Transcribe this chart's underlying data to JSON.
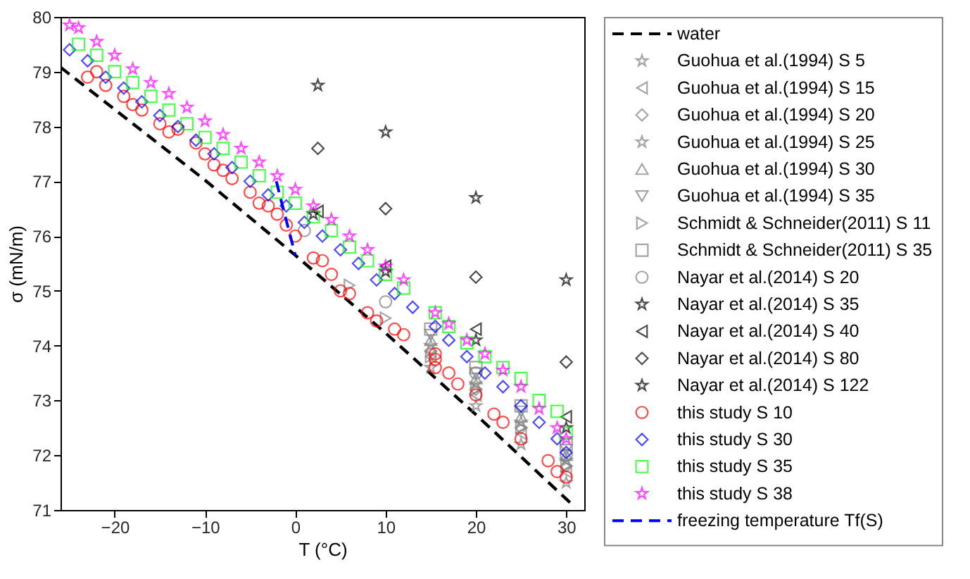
{
  "chart_data": {
    "type": "scatter",
    "xlabel": "T (°C)",
    "ylabel": "σ (mN/m)",
    "xlim": [
      -26,
      32
    ],
    "ylim": [
      71,
      80
    ],
    "xticks": [
      -20,
      -10,
      0,
      10,
      20,
      30
    ],
    "yticks": [
      71,
      72,
      73,
      74,
      75,
      76,
      77,
      78,
      79,
      80
    ],
    "grid": false,
    "legend": "right",
    "series": [
      {
        "name": "water",
        "type": "line",
        "line_style": "dashed",
        "marker": "none",
        "color": "#000000",
        "x": [
          -26,
          -20,
          -10,
          0,
          10,
          20,
          30,
          31
        ],
        "values": [
          79.08,
          78.31,
          77.02,
          75.65,
          74.23,
          72.74,
          71.2,
          71.05
        ]
      },
      {
        "name": "Guohua et al.(1994) S 5",
        "marker": "star",
        "color": "#808080",
        "x": [
          15,
          20,
          25,
          30
        ],
        "values": [
          73.6,
          72.9,
          72.2,
          71.5
        ]
      },
      {
        "name": "Guohua et al.(1994) S 15",
        "marker": "triangle-left",
        "color": "#808080",
        "x": [
          15,
          20,
          25,
          30
        ],
        "values": [
          73.8,
          73.1,
          72.4,
          71.7
        ]
      },
      {
        "name": "Guohua et al.(1994) S 20",
        "marker": "diamond",
        "color": "#808080",
        "x": [
          15,
          20,
          25,
          30
        ],
        "values": [
          73.9,
          73.2,
          72.5,
          71.8
        ]
      },
      {
        "name": "Guohua et al.(1994) S 25",
        "marker": "star",
        "color": "#808080",
        "x": [
          15,
          20,
          25,
          30
        ],
        "values": [
          74.0,
          73.3,
          72.6,
          71.9
        ]
      },
      {
        "name": "Guohua et al.(1994) S 30",
        "marker": "triangle",
        "color": "#808080",
        "x": [
          15,
          20,
          25,
          30
        ],
        "values": [
          74.1,
          73.4,
          72.7,
          72.0
        ]
      },
      {
        "name": "Guohua et al.(1994) S 35",
        "marker": "triangle-down",
        "color": "#808080",
        "x": [
          15,
          20,
          25,
          30
        ],
        "values": [
          74.2,
          73.5,
          72.8,
          72.1
        ]
      },
      {
        "name": "Schmidt & Schneider(2011) S 11",
        "marker": "triangle-right",
        "color": "#808080",
        "x": [
          6,
          10,
          15,
          20,
          25,
          30
        ],
        "values": [
          75.1,
          74.5,
          73.8,
          73.2,
          72.5,
          71.8
        ]
      },
      {
        "name": "Schmidt & Schneider(2011) S 35",
        "marker": "square",
        "color": "#808080",
        "x": [
          15,
          20,
          25,
          30
        ],
        "values": [
          74.3,
          73.6,
          72.9,
          72.2
        ]
      },
      {
        "name": "Nayar et al.(2014) S 20",
        "marker": "circle",
        "color": "#808080",
        "x": [
          1,
          10,
          20,
          30
        ],
        "values": [
          76.1,
          74.8,
          73.5,
          72.0
        ]
      },
      {
        "name": "Nayar et al.(2014) S 35",
        "marker": "star",
        "color": "#000000",
        "x": [
          2,
          10,
          20,
          30
        ],
        "values": [
          76.4,
          75.35,
          74.1,
          72.5
        ]
      },
      {
        "name": "Nayar et al.(2014) S 40",
        "marker": "triangle-left",
        "color": "#000000",
        "x": [
          2.5,
          10,
          20,
          30
        ],
        "values": [
          76.45,
          75.45,
          74.3,
          72.7
        ]
      },
      {
        "name": "Nayar et al.(2014) S 80",
        "marker": "diamond",
        "color": "#000000",
        "x": [
          2.5,
          10,
          20,
          30
        ],
        "values": [
          77.6,
          76.5,
          75.25,
          73.7
        ]
      },
      {
        "name": "Nayar et al.(2014) S 122",
        "marker": "star",
        "color": "#000000",
        "x": [
          2.5,
          10,
          20,
          30
        ],
        "values": [
          78.75,
          77.9,
          76.7,
          75.2
        ]
      },
      {
        "name": "this study S 10",
        "marker": "circle",
        "color": "#ff0000",
        "x": [
          -23,
          -22,
          -21,
          -19,
          -18,
          -17,
          -15,
          -14,
          -13,
          -11,
          -10,
          -9,
          -8,
          -7,
          -5,
          -4,
          -3,
          -2,
          -1,
          0,
          2,
          3,
          4,
          5,
          6,
          8,
          9,
          11,
          12,
          15.5,
          15.5,
          15.5,
          17,
          18,
          20,
          22,
          23,
          25,
          28,
          29,
          30
        ],
        "values": [
          78.9,
          79.0,
          78.75,
          78.55,
          78.4,
          78.3,
          78.05,
          77.9,
          77.95,
          77.7,
          77.5,
          77.3,
          77.2,
          77.05,
          76.8,
          76.6,
          76.55,
          76.4,
          76.2,
          76.0,
          75.6,
          75.55,
          75.3,
          75.0,
          74.95,
          74.6,
          74.45,
          74.3,
          74.2,
          73.85,
          73.75,
          73.6,
          73.5,
          73.3,
          73.1,
          72.75,
          72.6,
          72.3,
          71.9,
          71.7,
          71.6
        ]
      },
      {
        "name": "this study S 30",
        "marker": "diamond",
        "color": "#0000ff",
        "x": [
          -25,
          -23,
          -21,
          -19,
          -17,
          -15,
          -13,
          -11,
          -9,
          -7,
          -5,
          -3,
          -1,
          1,
          3,
          5,
          7,
          9,
          11,
          13,
          15.5,
          17,
          19,
          21,
          23,
          25,
          27,
          29,
          30
        ],
        "values": [
          79.4,
          79.2,
          78.9,
          78.7,
          78.45,
          78.2,
          78.0,
          77.75,
          77.5,
          77.25,
          77.0,
          76.75,
          76.55,
          76.25,
          76.0,
          75.75,
          75.5,
          75.2,
          74.95,
          74.7,
          74.35,
          74.1,
          73.8,
          73.5,
          73.25,
          72.9,
          72.6,
          72.3,
          72.05
        ]
      },
      {
        "name": "this study S 35",
        "marker": "square",
        "color": "#00ff00",
        "x": [
          -24,
          -22,
          -20,
          -18,
          -16,
          -14,
          -12,
          -10,
          -8,
          -6,
          -4,
          -2,
          0,
          2,
          4,
          6,
          8,
          10,
          12,
          15.5,
          17,
          19,
          21,
          23,
          25,
          27,
          29,
          30
        ],
        "values": [
          79.5,
          79.3,
          79.0,
          78.8,
          78.55,
          78.3,
          78.05,
          77.8,
          77.6,
          77.35,
          77.1,
          76.8,
          76.6,
          76.35,
          76.1,
          75.8,
          75.55,
          75.3,
          75.05,
          74.6,
          74.35,
          74.05,
          73.8,
          73.6,
          73.4,
          73.0,
          72.8,
          72.4
        ]
      },
      {
        "name": "this study S 38",
        "marker": "star",
        "color": "#ff00ff",
        "x": [
          -25,
          -24,
          -22,
          -20,
          -18,
          -16,
          -14,
          -12,
          -10,
          -8,
          -6,
          -4,
          -2,
          0,
          2,
          4,
          6,
          8,
          10,
          12,
          15.5,
          17,
          19,
          21,
          23,
          25,
          27,
          29,
          30
        ],
        "values": [
          79.85,
          79.8,
          79.55,
          79.3,
          79.05,
          78.8,
          78.6,
          78.35,
          78.1,
          77.85,
          77.6,
          77.35,
          77.1,
          76.85,
          76.55,
          76.3,
          76.0,
          75.75,
          75.45,
          75.2,
          74.6,
          74.4,
          74.1,
          73.85,
          73.55,
          73.25,
          72.85,
          72.5,
          72.3
        ]
      },
      {
        "name": "freezing temperature Tf(S)",
        "type": "line",
        "line_style": "dashed",
        "marker": "none",
        "color": "#0000ff",
        "x": [
          0,
          -0.55,
          -1.1,
          -1.65,
          -2.1
        ],
        "values": [
          75.65,
          76.0,
          76.35,
          76.7,
          77.0
        ]
      }
    ]
  }
}
